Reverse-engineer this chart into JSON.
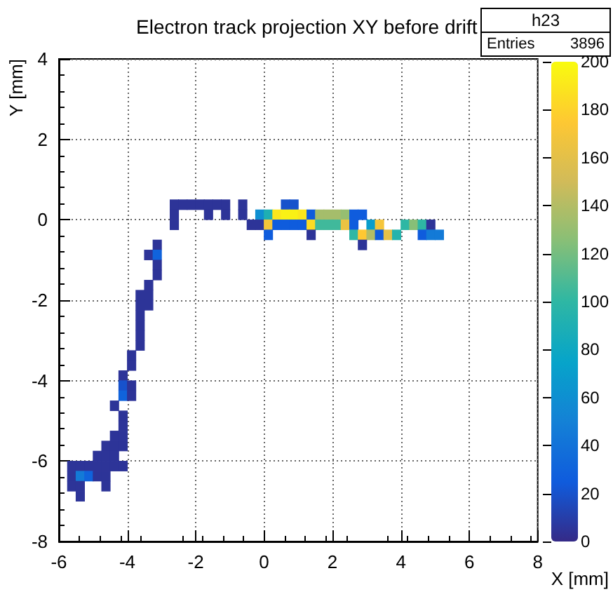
{
  "chart_data": {
    "type": "scatter",
    "title": "Electron track projection XY before drift",
    "xlabel": "X [mm]",
    "ylabel": "Y [mm]",
    "annotations": [
      "h23",
      "Entries",
      "3896"
    ],
    "xlim": [
      -6,
      8
    ],
    "xticks": [
      -6,
      -4,
      -2,
      0,
      2,
      4,
      6,
      8
    ],
    "ylim": [
      -8,
      4
    ],
    "yticks": [
      -8,
      -6,
      -4,
      -2,
      0,
      2,
      4
    ],
    "clim": [
      0,
      200
    ],
    "cticks": [
      0,
      20,
      40,
      60,
      80,
      100,
      120,
      140,
      160,
      180,
      200
    ],
    "grid": true,
    "marker": "square",
    "x": [
      -2.625,
      -2.375,
      -2.125,
      -1.875,
      -1.625,
      -1.375,
      -1.125,
      -0.625,
      0.625,
      0.875,
      -2.625,
      -1.625,
      -1.125,
      -0.625,
      -0.125,
      0.125,
      0.375,
      0.625,
      0.875,
      1.125,
      1.375,
      1.625,
      1.875,
      2.125,
      2.375,
      2.625,
      2.875,
      -2.625,
      -0.375,
      -0.125,
      0.125,
      0.375,
      0.625,
      0.875,
      1.125,
      1.375,
      1.625,
      1.875,
      2.125,
      2.375,
      2.625,
      3.125,
      3.375,
      4.125,
      4.375,
      4.625,
      4.875,
      0.125,
      1.375,
      2.625,
      2.875,
      3.125,
      3.375,
      3.625,
      3.875,
      4.625,
      4.875,
      5.125,
      -3.125,
      2.875,
      -3.375,
      -3.125,
      -3.125,
      -3.125,
      -3.375,
      -3.625,
      -3.375,
      -3.625,
      -3.375,
      -3.625,
      -3.625,
      -3.625,
      -3.625,
      -3.875,
      -3.875,
      -4.125,
      -4.125,
      -3.875,
      -4.125,
      -3.875,
      -4.375,
      -4.125,
      -4.125,
      -4.375,
      -4.125,
      -4.625,
      -4.375,
      -4.125,
      -4.875,
      -4.625,
      -4.375,
      -5.625,
      -5.375,
      -5.125,
      -4.875,
      -4.625,
      -4.375,
      -4.125,
      -5.625,
      -5.375,
      -5.125,
      -4.875,
      -4.625,
      -5.625,
      -5.375,
      -4.625,
      -5.375
    ],
    "values": [
      0.375,
      0.375,
      0.375,
      0.375,
      0.375,
      0.375,
      0.375,
      0.375,
      0.375,
      0.375,
      0.125,
      0.125,
      0.125,
      0.125,
      0.125,
      0.125,
      0.125,
      0.125,
      0.125,
      0.125,
      0.125,
      0.125,
      0.125,
      0.125,
      0.125,
      0.125,
      0.125,
      -0.125,
      -0.125,
      -0.125,
      -0.125,
      -0.125,
      -0.125,
      -0.125,
      -0.125,
      -0.125,
      -0.125,
      -0.125,
      -0.125,
      -0.125,
      -0.125,
      -0.125,
      -0.125,
      -0.125,
      -0.125,
      -0.125,
      -0.125,
      -0.375,
      -0.375,
      -0.375,
      -0.375,
      -0.375,
      -0.375,
      -0.375,
      -0.375,
      -0.375,
      -0.375,
      -0.375,
      -0.625,
      -0.625,
      -0.875,
      -0.875,
      -1.125,
      -1.375,
      -1.625,
      -1.875,
      -1.875,
      -2.125,
      -2.125,
      -2.375,
      -2.625,
      -2.875,
      -3.125,
      -3.375,
      -3.625,
      -3.875,
      -4.125,
      -4.125,
      -4.375,
      -4.375,
      -4.625,
      -4.875,
      -5.125,
      -5.375,
      -5.375,
      -5.625,
      -5.625,
      -5.625,
      -5.875,
      -5.875,
      -5.875,
      -6.125,
      -6.125,
      -6.125,
      -6.125,
      -6.125,
      -6.125,
      -6.125,
      -6.375,
      -6.375,
      -6.375,
      -6.375,
      -6.375,
      -6.625,
      -6.625,
      -6.625,
      -6.875
    ],
    "cvalues": [
      5,
      5,
      5,
      5,
      5,
      5,
      5,
      5,
      20,
      20,
      5,
      5,
      5,
      5,
      60,
      90,
      190,
      195,
      195,
      190,
      25,
      135,
      135,
      135,
      130,
      25,
      25,
      5,
      5,
      5,
      170,
      25,
      25,
      25,
      25,
      185,
      105,
      105,
      105,
      165,
      25,
      70,
      170,
      100,
      125,
      100,
      5,
      25,
      5,
      100,
      175,
      140,
      25,
      160,
      95,
      25,
      45,
      45,
      5,
      5,
      5,
      30,
      5,
      5,
      5,
      5,
      5,
      5,
      5,
      5,
      5,
      5,
      5,
      5,
      5,
      5,
      20,
      5,
      30,
      5,
      5,
      5,
      5,
      5,
      5,
      5,
      5,
      5,
      5,
      5,
      5,
      5,
      5,
      5,
      5,
      5,
      5,
      5,
      5,
      45,
      30,
      5,
      5,
      5,
      5,
      5,
      5
    ]
  }
}
